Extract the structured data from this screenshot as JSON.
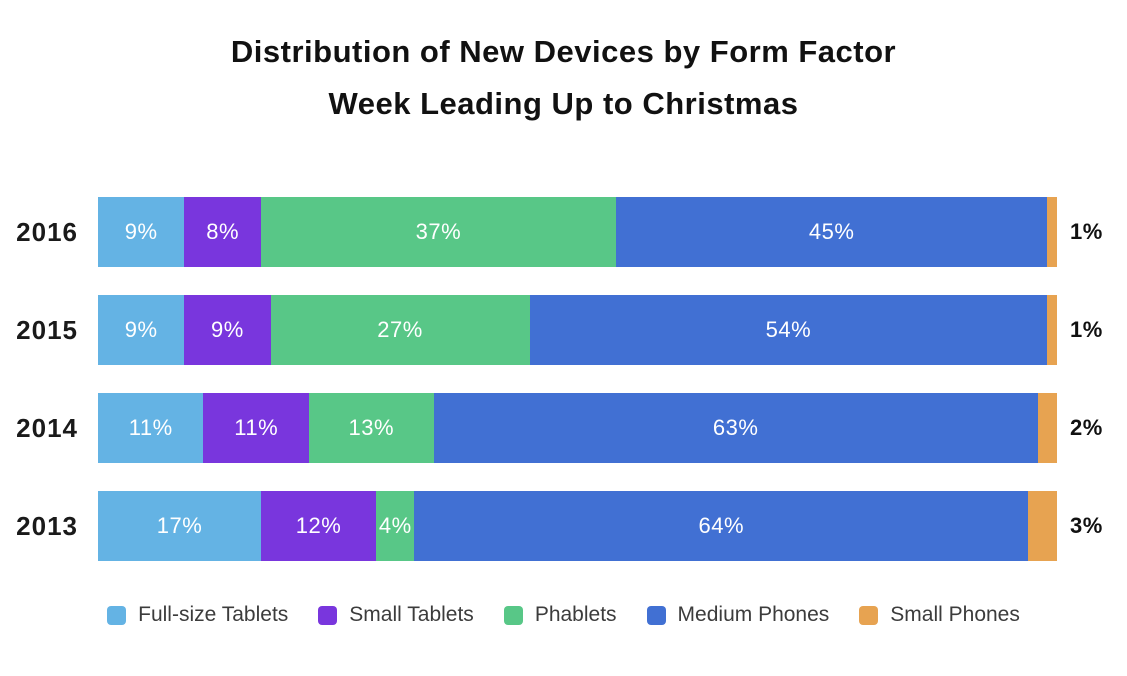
{
  "title": {
    "line1": "Distribution of New Devices by Form Factor",
    "line2": "Week Leading Up to Christmas"
  },
  "chart_data": {
    "type": "bar",
    "variant": "horizontal-stacked-100pct",
    "title": "Distribution of New Devices by Form Factor Week Leading Up to Christmas",
    "categories": [
      "2016",
      "2015",
      "2014",
      "2013"
    ],
    "series": [
      {
        "name": "Full-size Tablets",
        "color": "#64b3e4",
        "values": [
          9,
          9,
          11,
          17
        ]
      },
      {
        "name": "Small Tablets",
        "color": "#7936dd",
        "values": [
          8,
          9,
          11,
          12
        ]
      },
      {
        "name": "Phablets",
        "color": "#58c787",
        "values": [
          37,
          27,
          13,
          4
        ]
      },
      {
        "name": "Medium Phones",
        "color": "#4170d3",
        "values": [
          45,
          54,
          63,
          64
        ]
      },
      {
        "name": "Small Phones",
        "color": "#e7a351",
        "values": [
          1,
          1,
          2,
          3
        ]
      }
    ],
    "value_suffix": "%",
    "xlim": [
      0,
      100
    ],
    "grid": false,
    "legend_position": "bottom",
    "in_bar_labels": true,
    "last_series_label_outside": true
  }
}
